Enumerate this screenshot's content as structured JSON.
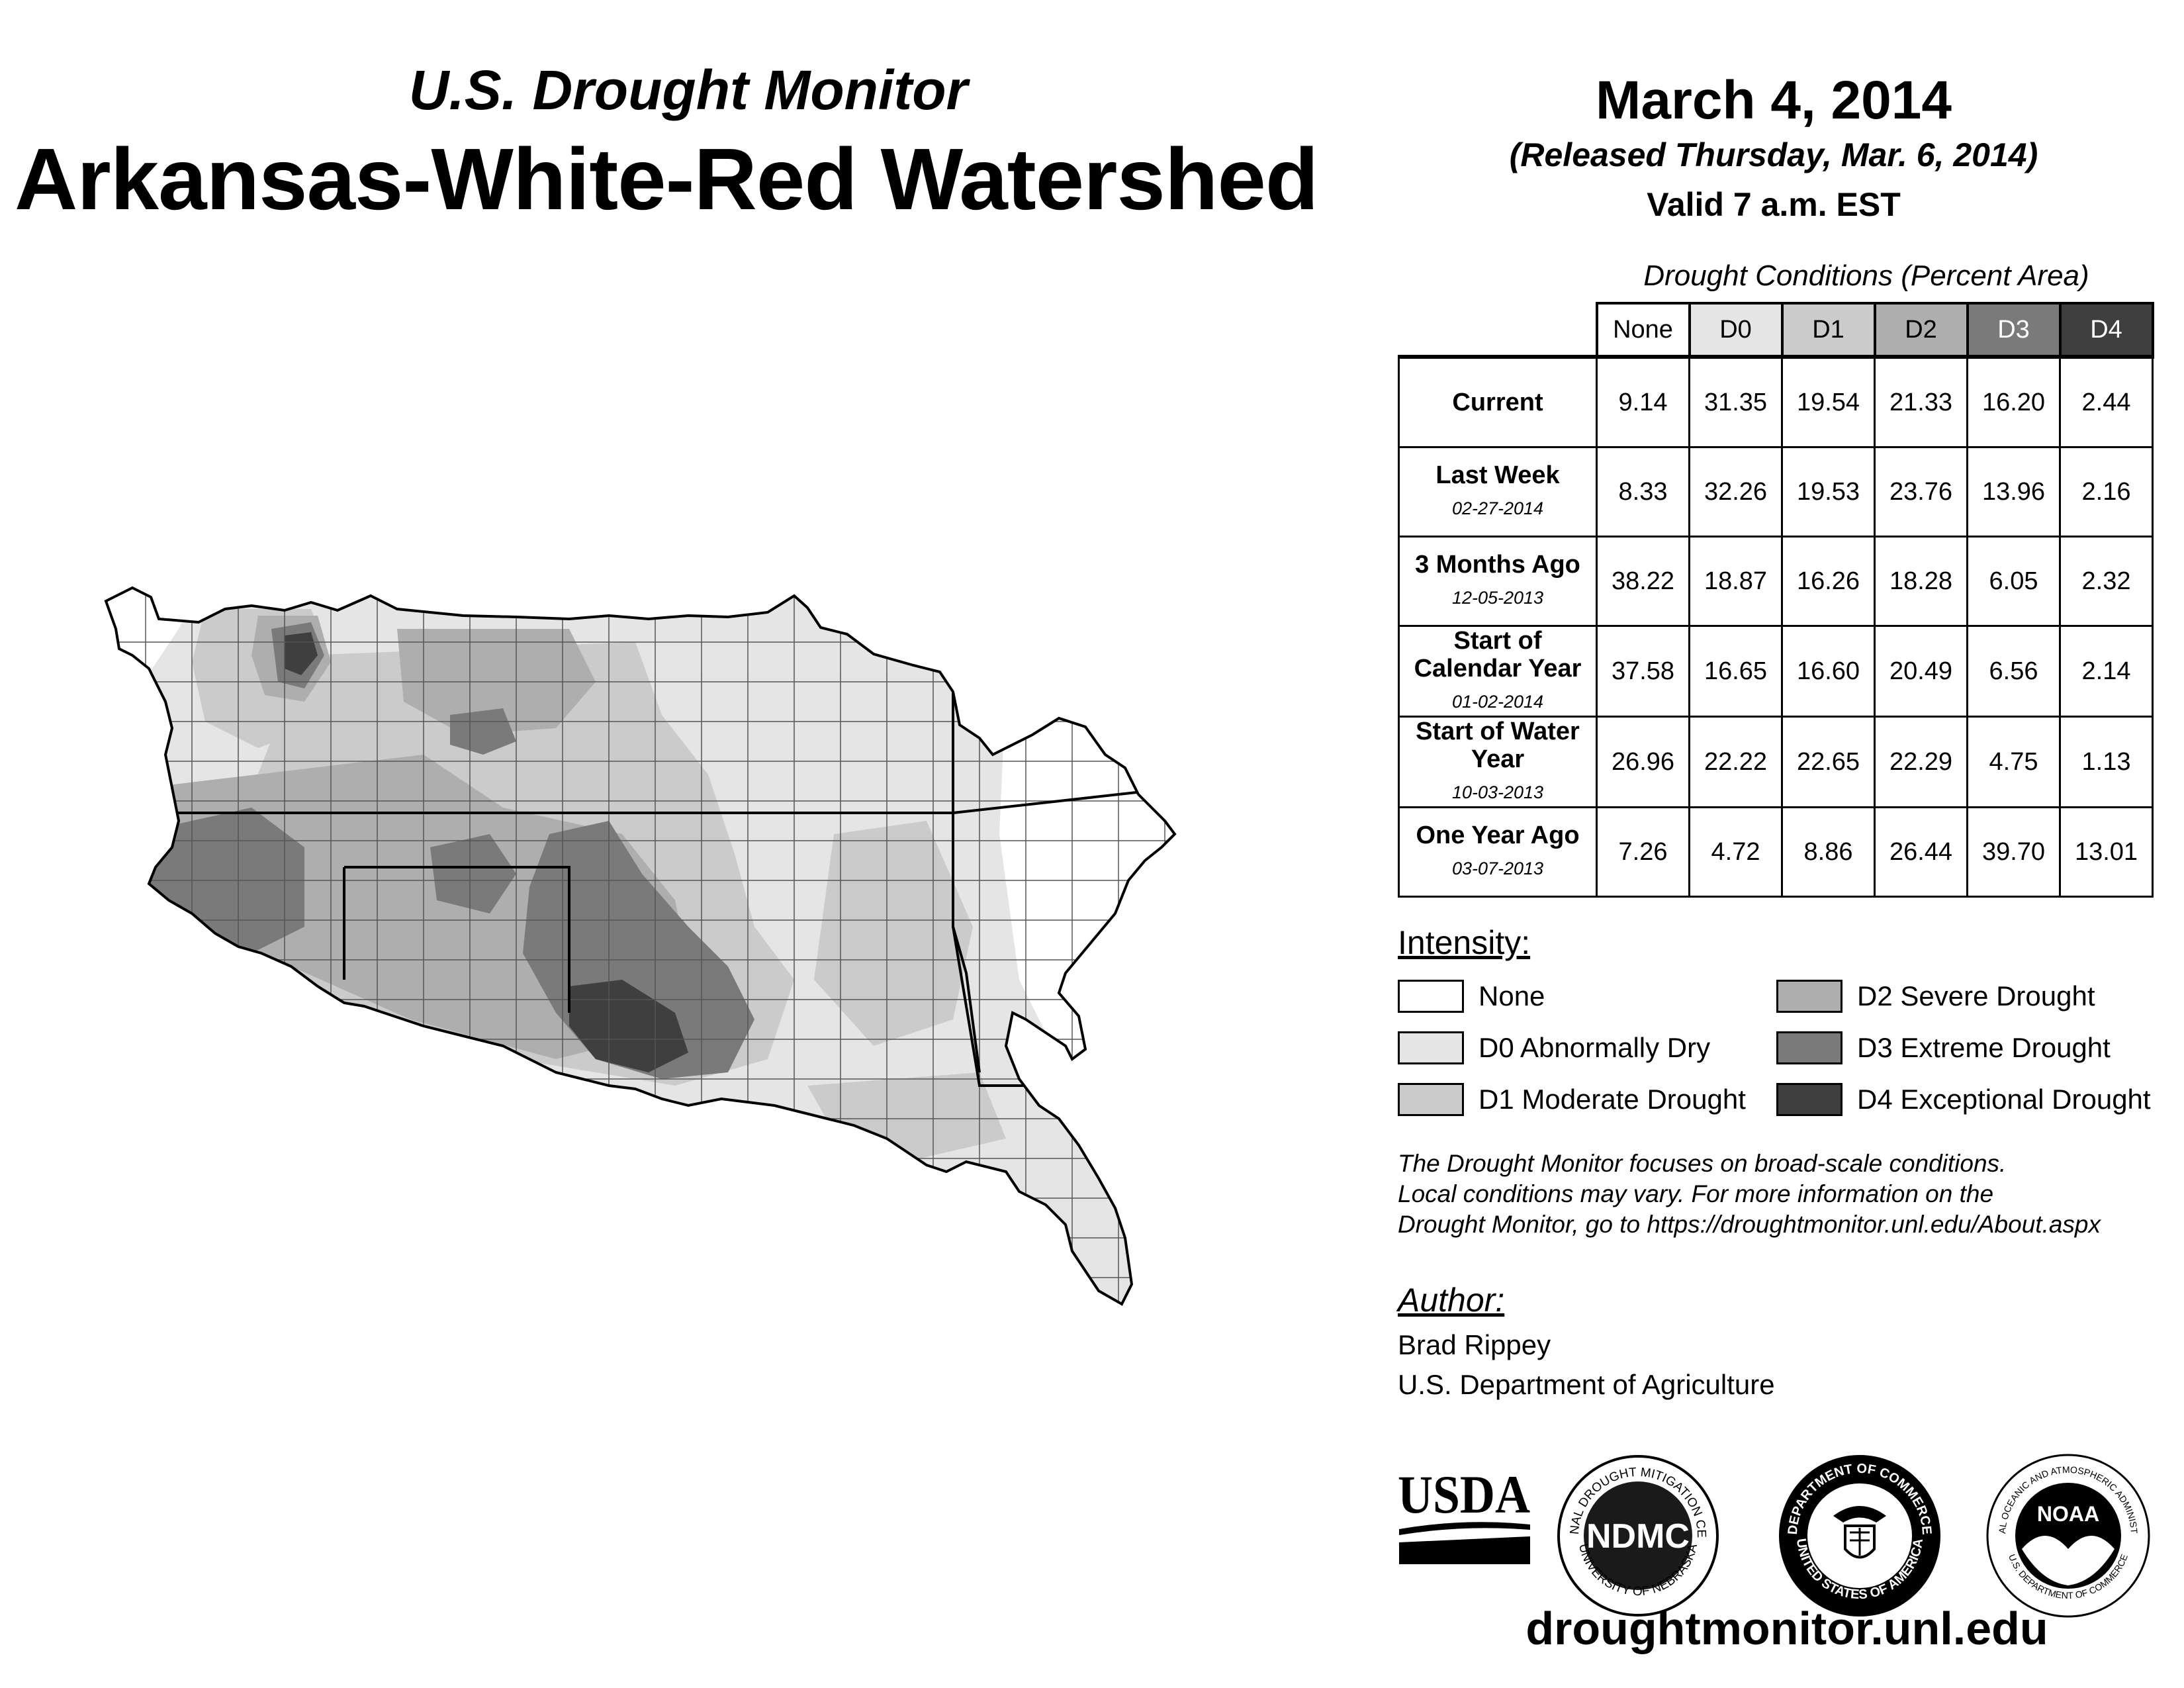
{
  "header": {
    "subtitle": "U.S. Drought Monitor",
    "title": "Arkansas-White-Red Watershed",
    "date": "March 4, 2014",
    "released": "(Released Thursday, Mar. 6, 2014)",
    "valid": "Valid 7 a.m. EST"
  },
  "table": {
    "caption": "Drought Conditions (Percent Area)",
    "columns": [
      "None",
      "D0",
      "D1",
      "D2",
      "D3",
      "D4"
    ],
    "rows": [
      {
        "label": "Current",
        "date": "",
        "values": [
          "9.14",
          "31.35",
          "19.54",
          "21.33",
          "16.20",
          "2.44"
        ]
      },
      {
        "label": "Last Week",
        "date": "02-27-2014",
        "values": [
          "8.33",
          "32.26",
          "19.53",
          "23.76",
          "13.96",
          "2.16"
        ]
      },
      {
        "label": "3 Months Ago",
        "date": "12-05-2013",
        "values": [
          "38.22",
          "18.87",
          "16.26",
          "18.28",
          "6.05",
          "2.32"
        ]
      },
      {
        "label": "Start of Calendar Year",
        "date": "01-02-2014",
        "values": [
          "37.58",
          "16.65",
          "16.60",
          "20.49",
          "6.56",
          "2.14"
        ]
      },
      {
        "label": "Start of Water Year",
        "date": "10-03-2013",
        "values": [
          "26.96",
          "22.22",
          "22.65",
          "22.29",
          "4.75",
          "1.13"
        ]
      },
      {
        "label": "One Year Ago",
        "date": "03-07-2013",
        "values": [
          "7.26",
          "4.72",
          "8.86",
          "26.44",
          "39.70",
          "13.01"
        ]
      }
    ]
  },
  "legend": {
    "title": "Intensity:",
    "items": [
      {
        "label": "None",
        "color": "#ffffff"
      },
      {
        "label": "D0 Abnormally Dry",
        "color": "#e5e5e5"
      },
      {
        "label": "D1 Moderate Drought",
        "color": "#cbcbcb"
      },
      {
        "label": "D2 Severe Drought",
        "color": "#aeaeae"
      },
      {
        "label": "D3 Extreme Drought",
        "color": "#7a7a7a"
      },
      {
        "label": "D4 Exceptional Drought",
        "color": "#3f3f3f"
      }
    ]
  },
  "disclaimer": {
    "line1": "The Drought Monitor focuses on broad-scale conditions.",
    "line2": "Local conditions may vary. For more information on the",
    "line3": "Drought Monitor, go to https://droughtmonitor.unl.edu/About.aspx"
  },
  "author": {
    "title": "Author:",
    "name": "Brad Rippey",
    "org": "U.S. Department of Agriculture"
  },
  "logos": {
    "usda": "USDA",
    "ndmc": "NDMC",
    "ndmc_ring_top": "NATIONAL DROUGHT MITIGATION CENTER",
    "ndmc_ring_bottom": "UNIVERSITY OF NEBRASKA",
    "doc_ring_top": "DEPARTMENT OF COMMERCE",
    "doc_ring_bottom": "UNITED STATES OF AMERICA",
    "noaa": "NOAA",
    "noaa_ring_top": "NATIONAL OCEANIC AND ATMOSPHERIC ADMINISTRATION",
    "noaa_ring_bottom": "U.S. DEPARTMENT OF COMMERCE"
  },
  "website": "droughtmonitor.unl.edu"
}
